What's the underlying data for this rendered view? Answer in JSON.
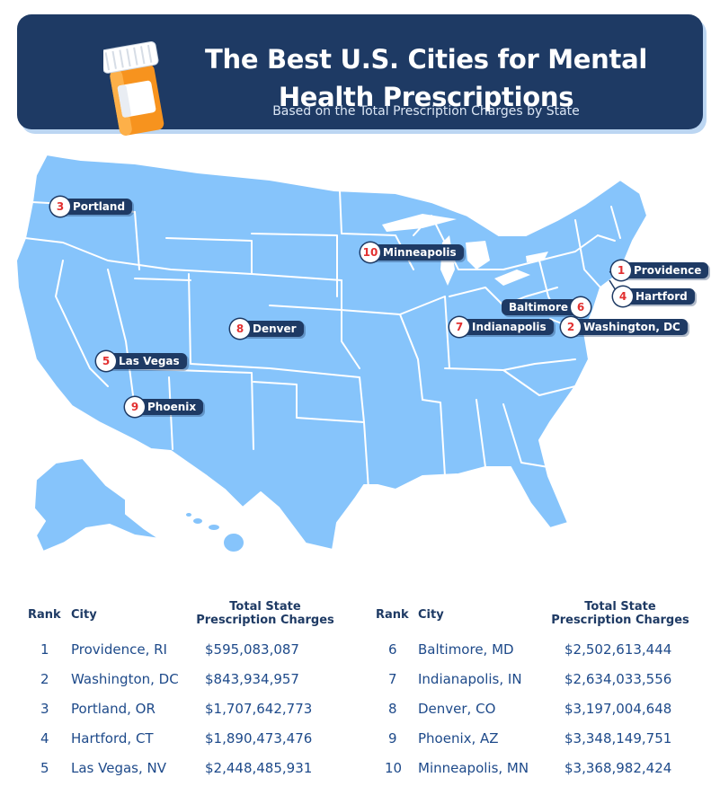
{
  "header": {
    "title_line1": "The Best U.S. Cities for Mental",
    "title_line2": "Health Prescriptions",
    "subtitle": "Based on the Total Prescription Charges by State"
  },
  "colors": {
    "navy": "#1e3a64",
    "map_fill": "#86c4fb",
    "state_border": "#ffffff",
    "rank_number": "#e23030",
    "bottle_orange": "#f7931e"
  },
  "map_markers": [
    {
      "rank": "1",
      "city": "Providence"
    },
    {
      "rank": "2",
      "city": "Washington, DC"
    },
    {
      "rank": "3",
      "city": "Portland"
    },
    {
      "rank": "4",
      "city": "Hartford"
    },
    {
      "rank": "5",
      "city": "Las Vegas"
    },
    {
      "rank": "6",
      "city": "Baltimore"
    },
    {
      "rank": "7",
      "city": "Indianapolis"
    },
    {
      "rank": "8",
      "city": "Denver"
    },
    {
      "rank": "9",
      "city": "Phoenix"
    },
    {
      "rank": "10",
      "city": "Minneapolis"
    }
  ],
  "table": {
    "col_rank": "Rank",
    "col_city": "City",
    "col_charges_line1": "Total State",
    "col_charges_line2": "Prescription Charges",
    "rows": [
      {
        "rank": "1",
        "city": "Providence, RI",
        "charges": "$595,083,087"
      },
      {
        "rank": "2",
        "city": "Washington, DC",
        "charges": "$843,934,957"
      },
      {
        "rank": "3",
        "city": "Portland, OR",
        "charges": "$1,707,642,773"
      },
      {
        "rank": "4",
        "city": "Hartford, CT",
        "charges": "$1,890,473,476"
      },
      {
        "rank": "5",
        "city": "Las Vegas, NV",
        "charges": "$2,448,485,931"
      },
      {
        "rank": "6",
        "city": "Baltimore, MD",
        "charges": "$2,502,613,444"
      },
      {
        "rank": "7",
        "city": "Indianapolis, IN",
        "charges": "$2,634,033,556"
      },
      {
        "rank": "8",
        "city": "Denver, CO",
        "charges": "$3,197,004,648"
      },
      {
        "rank": "9",
        "city": "Phoenix, AZ",
        "charges": "$3,348,149,751"
      },
      {
        "rank": "10",
        "city": "Minneapolis, MN",
        "charges": "$3,368,982,424"
      }
    ]
  }
}
